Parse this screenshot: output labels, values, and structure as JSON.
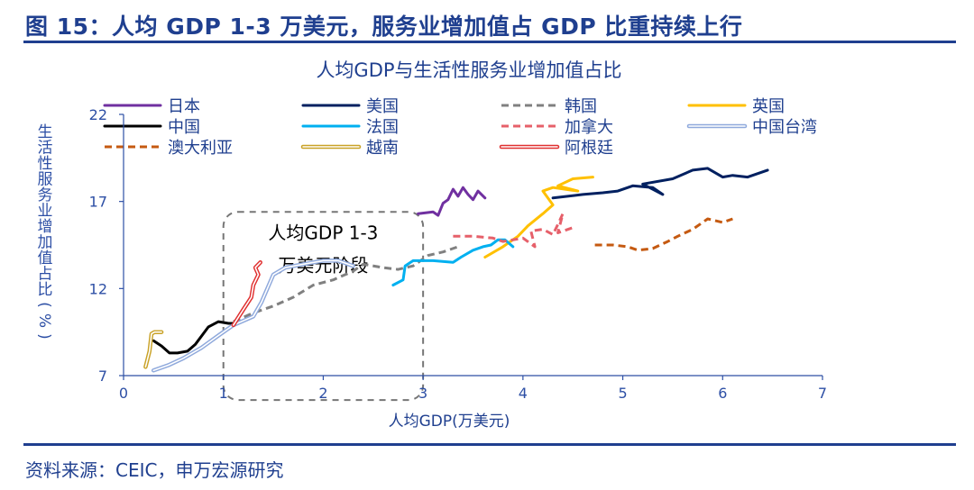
{
  "figure_title": "图 15：人均 GDP 1-3 万美元，服务业增加值占 GDP 比重持续上行",
  "source_note": "资料来源：CEIC，申万宏源研究",
  "chart_data": {
    "type": "line",
    "title": "人均GDP与生活性服务业增加值占比",
    "xlabel": "人均GDP(万美元)",
    "ylabel": "生活性服务业增加值占比(%)",
    "xlim": [
      0,
      7
    ],
    "ylim": [
      7,
      22
    ],
    "x_ticks": [
      "0",
      "1",
      "2",
      "3",
      "4",
      "5",
      "6",
      "7"
    ],
    "y_ticks": [
      "7",
      "12",
      "17",
      "22"
    ],
    "grid": false,
    "legend": "top",
    "annotation": {
      "lines": [
        "人均GDP 1-3",
        "万美元阶段"
      ],
      "x_range": [
        1.0,
        3.0
      ],
      "y_range": [
        5.6,
        16.4
      ]
    },
    "colors": {
      "title_blue": "#1f3f8f",
      "axis_blue": "#2d4fa5",
      "box_gray": "#767676"
    },
    "series": [
      {
        "name": "日本",
        "color": "#7030a0",
        "style": "solid",
        "x": [
          2.95,
          3.1,
          3.15,
          3.2,
          3.25,
          3.3,
          3.35,
          3.4,
          3.45,
          3.5,
          3.55,
          3.62
        ],
        "y": [
          16.3,
          16.4,
          16.2,
          16.9,
          17.1,
          17.7,
          17.3,
          17.8,
          17.4,
          17.1,
          17.6,
          17.2
        ]
      },
      {
        "name": "美国",
        "color": "#002060",
        "style": "solid",
        "x": [
          4.3,
          4.6,
          4.8,
          4.95,
          5.1,
          5.3,
          5.4,
          5.2,
          5.5,
          5.7,
          5.85,
          6.0,
          6.1,
          6.25,
          6.45
        ],
        "y": [
          17.2,
          17.4,
          17.5,
          17.6,
          17.9,
          17.8,
          17.4,
          18.0,
          18.3,
          18.8,
          18.9,
          18.4,
          18.5,
          18.4,
          18.8
        ]
      },
      {
        "name": "韩国",
        "color": "#808080",
        "style": "dash",
        "x": [
          1.1,
          1.3,
          1.5,
          1.7,
          1.9,
          2.1,
          2.3,
          2.4,
          2.6,
          2.75,
          2.9,
          3.05,
          3.2,
          3.35
        ],
        "y": [
          10.1,
          10.6,
          11.0,
          11.5,
          12.2,
          12.5,
          13.0,
          13.4,
          13.2,
          13.1,
          13.3,
          13.9,
          14.1,
          14.4
        ]
      },
      {
        "name": "英国",
        "color": "#ffc000",
        "style": "solid",
        "x": [
          3.62,
          3.8,
          3.95,
          4.05,
          4.2,
          4.3,
          4.2,
          4.3,
          4.55,
          4.35,
          4.5,
          4.7
        ],
        "y": [
          13.8,
          14.4,
          15.0,
          15.6,
          16.3,
          16.8,
          17.6,
          17.8,
          17.6,
          17.9,
          18.3,
          18.4
        ]
      },
      {
        "name": "中国",
        "color": "#000000",
        "style": "solid",
        "x": [
          0.3,
          0.38,
          0.46,
          0.54,
          0.64,
          0.72,
          0.85,
          0.95,
          1.05,
          1.15
        ],
        "y": [
          9.0,
          8.7,
          8.3,
          8.3,
          8.4,
          8.8,
          9.8,
          10.1,
          10.0,
          10.0
        ]
      },
      {
        "name": "法国",
        "color": "#00b0f0",
        "style": "solid",
        "x": [
          2.7,
          2.8,
          2.82,
          2.9,
          3.1,
          3.3,
          3.38,
          3.5,
          3.6,
          3.68,
          3.75,
          3.82,
          3.9
        ],
        "y": [
          12.2,
          12.5,
          13.3,
          13.6,
          13.6,
          13.5,
          13.8,
          14.2,
          14.4,
          14.5,
          14.8,
          14.8,
          14.4
        ]
      },
      {
        "name": "加拿大",
        "color": "#e6606a",
        "style": "dash",
        "x": [
          3.3,
          3.5,
          3.7,
          3.8,
          4.0,
          4.12,
          4.08,
          4.2,
          4.3,
          4.36,
          4.4,
          4.35,
          4.5
        ],
        "y": [
          15.0,
          15.0,
          14.9,
          14.7,
          14.9,
          14.4,
          15.3,
          15.4,
          15.1,
          15.8,
          16.3,
          15.2,
          15.5
        ]
      },
      {
        "name": "中国台湾",
        "color": "#8fa9dc",
        "style": "double",
        "x": [
          0.3,
          0.45,
          0.6,
          0.78,
          0.95,
          1.1,
          1.3,
          1.38,
          1.5,
          1.62,
          1.8,
          2.0,
          2.15,
          2.3
        ],
        "y": [
          7.3,
          7.6,
          8.0,
          8.6,
          9.3,
          9.9,
          10.4,
          11.2,
          12.8,
          13.2,
          13.4,
          13.6,
          13.6,
          13.3
        ]
      },
      {
        "name": "澳大利亚",
        "color": "#c55a11",
        "style": "dash",
        "x": [
          4.72,
          4.9,
          5.05,
          5.15,
          5.3,
          5.45,
          5.55,
          5.7,
          5.85,
          6.0,
          6.1
        ],
        "y": [
          14.5,
          14.5,
          14.4,
          14.2,
          14.3,
          14.7,
          15.0,
          15.4,
          16.0,
          15.8,
          16.0
        ]
      },
      {
        "name": "越南",
        "color": "#c9a227",
        "style": "double",
        "x": [
          0.22,
          0.26,
          0.28,
          0.31,
          0.38
        ],
        "y": [
          7.5,
          8.4,
          9.4,
          9.5,
          9.5
        ]
      },
      {
        "name": "阿根廷",
        "color": "#e03030",
        "style": "double",
        "x": [
          1.1,
          1.2,
          1.28,
          1.3,
          1.35,
          1.32,
          1.37
        ],
        "y": [
          9.9,
          10.8,
          11.5,
          12.2,
          12.8,
          13.2,
          13.5
        ]
      }
    ]
  }
}
